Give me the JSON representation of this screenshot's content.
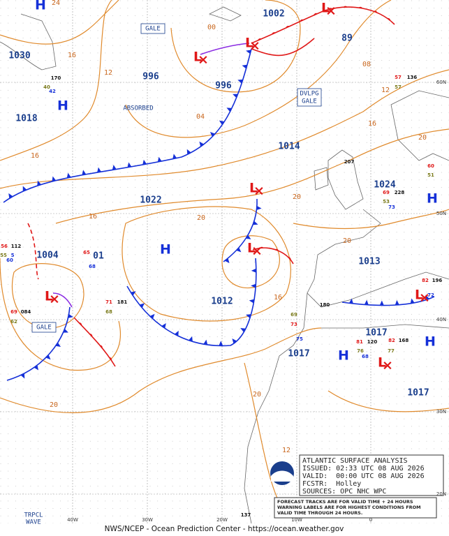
{
  "map": {
    "pressure_labels": [
      "1030",
      "1018",
      "996",
      "996",
      "1002",
      "89",
      "1014",
      "1024",
      "1022",
      "1004",
      "01",
      "1012",
      "1013",
      "1017",
      "1017",
      "1017"
    ],
    "highs": [
      "H",
      "H",
      "H",
      "H",
      "H",
      "H"
    ],
    "lows": [
      "L",
      "L",
      "L",
      "L",
      "L",
      "L",
      "L",
      "L"
    ],
    "isobar_labels": [
      "24",
      "16",
      "12",
      "00",
      "04",
      "08",
      "12",
      "16",
      "20",
      "16",
      "16",
      "20",
      "20",
      "20",
      "16",
      "12",
      "20",
      "20",
      "12"
    ],
    "warnings": [
      {
        "lines": [
          "GALE"
        ]
      },
      {
        "lines": [
          "GALE"
        ]
      },
      {
        "lines": [
          "DVLPG",
          "GALE"
        ]
      }
    ],
    "annotations": [
      "ABSORBED",
      "TRPCL",
      "WAVE"
    ],
    "lat_labels": [
      "60N",
      "50N",
      "40N",
      "30N",
      "20N"
    ],
    "lon_labels": [
      "40W",
      "30W",
      "20W",
      "10W",
      "0"
    ],
    "stations": [
      "170",
      "40",
      "42",
      "56",
      "112",
      "55",
      "5",
      "60",
      "084",
      "69",
      "62",
      "65",
      "68",
      "71",
      "181",
      "68",
      "207",
      "69",
      "228",
      "53",
      "73",
      "57",
      "136",
      "57",
      "60",
      "51",
      "82",
      "196",
      "72",
      "73",
      "180",
      "69",
      "75",
      "81",
      "120",
      "82",
      "168",
      "76",
      "68",
      "77",
      "137"
    ]
  },
  "info_box": {
    "lines": [
      "ATLANTIC SURFACE ANALYSIS",
      "ISSUED: 02:33 UTC 08 AUG 2026",
      "VALID:  00:00 UTC 08 AUG 2026",
      "FCSTR:  Holley",
      "SOURCES: OPC NHC WPC"
    ]
  },
  "note": {
    "lines": [
      "FORECAST TRACKS ARE FOR VALID TIME + 24 HOURS",
      "WARNING LABELS ARE FOR HIGHEST CONDITIONS FROM",
      "VALID TIME THROUGH 24 HOURS."
    ]
  },
  "footer": "NWS/NCEP - Ocean Prediction Center - https://ocean.weather.gov"
}
